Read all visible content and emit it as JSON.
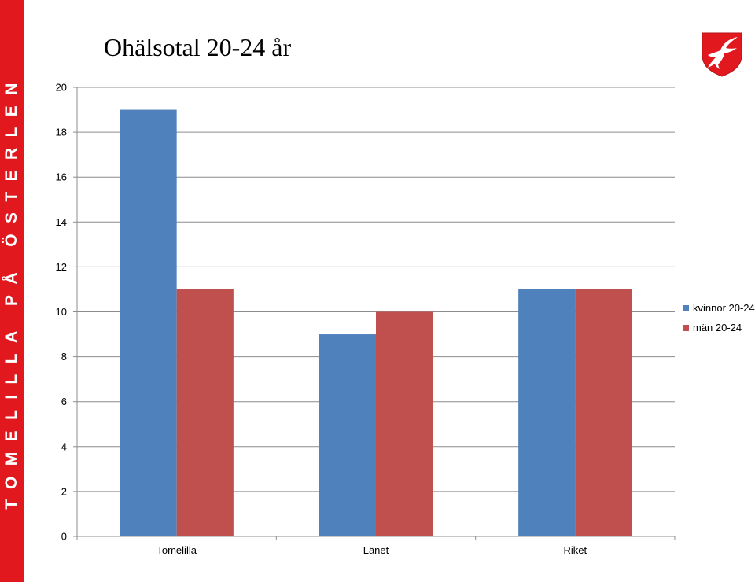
{
  "sidebar": {
    "text": "TOMELILLA PÅ ÖSTERLEN",
    "color": "#e1191e"
  },
  "title": "Ohälsotal 20-24 år",
  "chart_data": {
    "type": "bar",
    "title": "Ohälsotal 20-24 år",
    "categories": [
      "Tomelilla",
      "Länet",
      "Riket"
    ],
    "series": [
      {
        "name": "kvinnor 20-24",
        "values": [
          19,
          9,
          11
        ],
        "color": "#4f81bd"
      },
      {
        "name": "män 20-24",
        "values": [
          11,
          10,
          11
        ],
        "color": "#c0504d"
      }
    ],
    "yticks": [
      0,
      2,
      4,
      6,
      8,
      10,
      12,
      14,
      16,
      18,
      20
    ],
    "ylim": [
      0,
      20
    ],
    "xlabel": "",
    "ylabel": "",
    "grid": true,
    "legend_position": "right"
  }
}
